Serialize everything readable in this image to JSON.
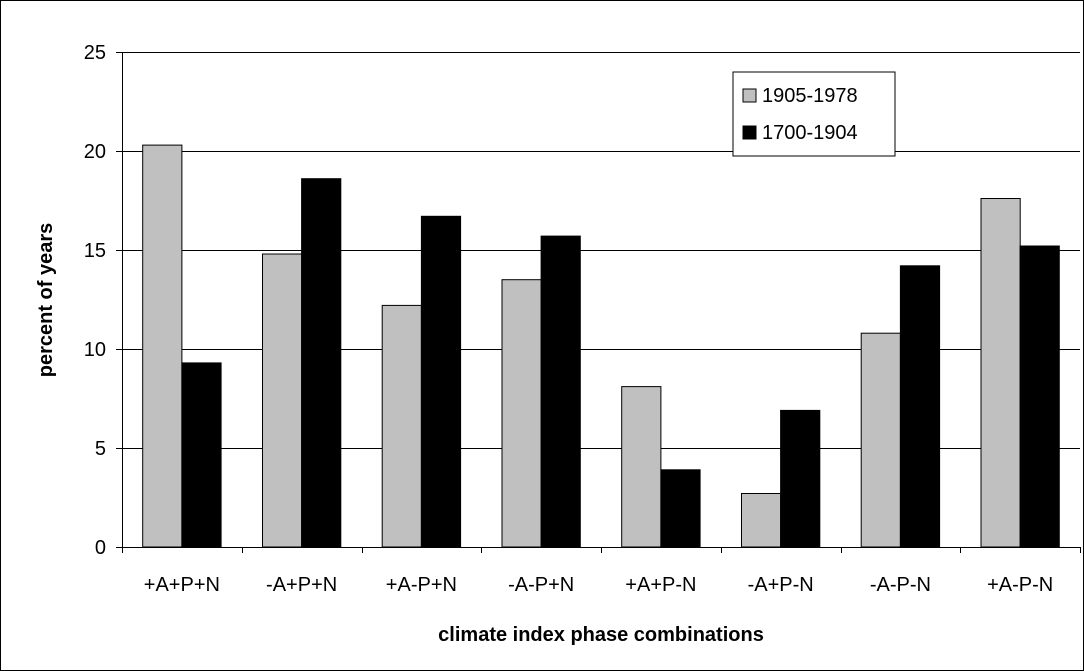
{
  "chart_data": {
    "type": "bar",
    "title": "",
    "xlabel": "climate index phase combinations",
    "ylabel": "percent of years",
    "ylim": [
      0,
      25
    ],
    "yticks": [
      0,
      5,
      10,
      15,
      20,
      25
    ],
    "categories": [
      "+A+P+N",
      "-A+P+N",
      "+A-P+N",
      "-A-P+N",
      "+A+P-N",
      "-A+P-N",
      "-A-P-N",
      "+A-P-N"
    ],
    "series": [
      {
        "name": "1905-1978",
        "color": "#c0c0c0",
        "values": [
          20.3,
          14.8,
          12.2,
          13.5,
          8.1,
          2.7,
          10.8,
          17.6
        ]
      },
      {
        "name": "1700-1904",
        "color": "#000000",
        "values": [
          9.3,
          18.6,
          16.7,
          15.7,
          3.9,
          6.9,
          14.2,
          15.2
        ]
      }
    ],
    "grid": true,
    "legend_position": "top-right"
  }
}
